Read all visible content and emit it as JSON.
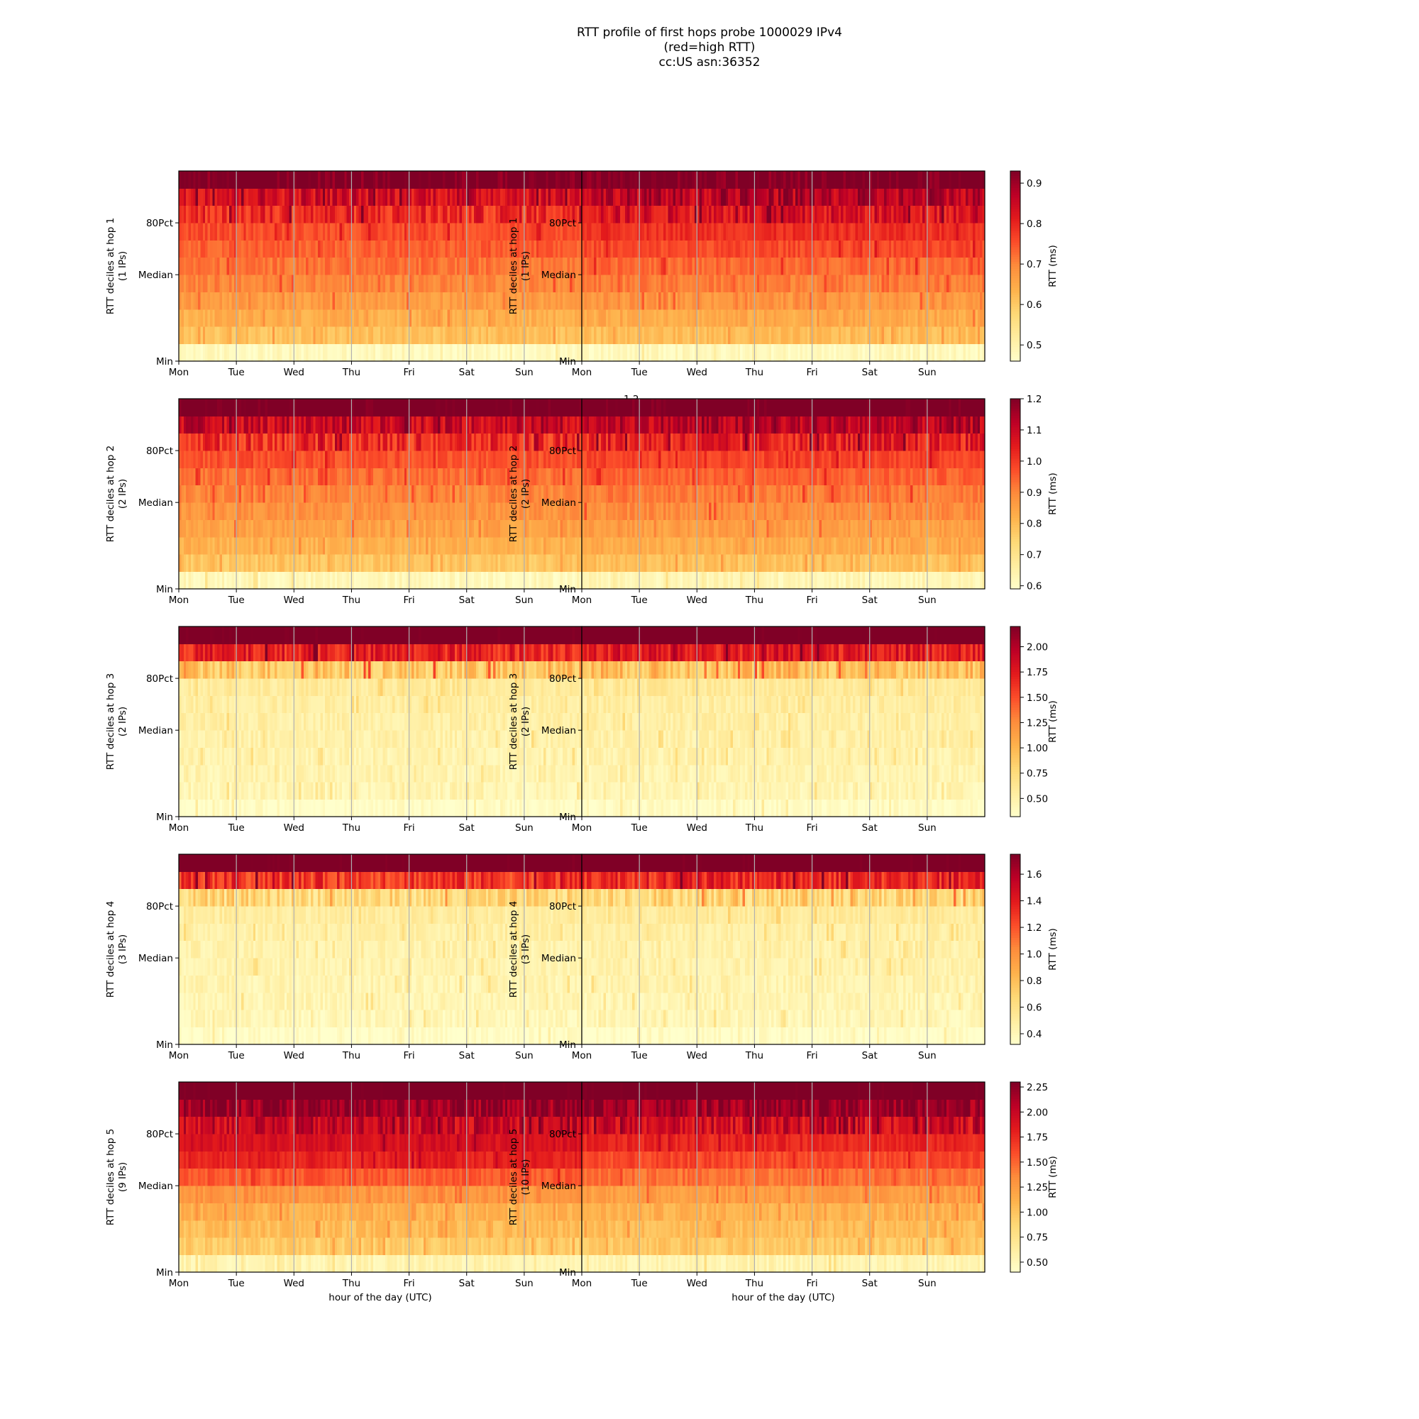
{
  "title": {
    "line1": "RTT profile of first hops probe 1000029 IPv4",
    "line2": "(red=high RTT)",
    "line3": "cc:US asn:36352"
  },
  "chart_data": {
    "type": "heatmap",
    "colormap": "YlOrRd",
    "x_ticks": [
      "Mon",
      "Tue",
      "Wed",
      "Thu",
      "Fri",
      "Sat",
      "Sun"
    ],
    "y_ticks": [
      "Min",
      "Median",
      "80Pct"
    ],
    "xlabel": "hour of the day (UTC)",
    "colorbar_label": "RTT (ms)",
    "rows_per_panel": 11,
    "columns_per_panel": 168,
    "grid": "vertical lines at day boundaries",
    "panels": [
      {
        "hop": 1,
        "column": "left",
        "ylabel": "RTT deciles at hop 1",
        "ips": "(1 IPs)",
        "cb_ticks": [
          "0.5",
          "0.6",
          "0.7",
          "0.8",
          "0.9"
        ],
        "cb_values": [
          0.5,
          0.6,
          0.7,
          0.8,
          0.9
        ],
        "cb_range": [
          0.44,
          0.93
        ],
        "decile_means": [
          0.46,
          0.6,
          0.63,
          0.66,
          0.69,
          0.71,
          0.73,
          0.75,
          0.79,
          0.84,
          0.95
        ]
      },
      {
        "hop": 1,
        "column": "right",
        "ylabel": "RTT deciles at hop 1",
        "ips": "(1 IPs)",
        "cb_ticks": [
          "0.5",
          "0.6",
          "0.7",
          "0.8",
          "0.9"
        ],
        "cb_values": [
          0.5,
          0.6,
          0.7,
          0.8,
          0.9
        ],
        "cb_range": [
          0.46,
          0.93
        ],
        "decile_means": [
          0.48,
          0.62,
          0.65,
          0.68,
          0.71,
          0.73,
          0.76,
          0.79,
          0.83,
          0.87,
          0.95
        ]
      },
      {
        "hop": 2,
        "column": "left",
        "ylabel": "RTT deciles at hop 2",
        "ips": "(2 IPs)",
        "cb_ticks": [
          "0.6",
          "0.7",
          "0.8",
          "0.9",
          "1.0",
          "1.1",
          "1.2"
        ],
        "cb_values": [
          0.6,
          0.7,
          0.8,
          0.9,
          1.0,
          1.1,
          1.2
        ],
        "cb_range": [
          0.59,
          1.2
        ],
        "decile_means": [
          0.62,
          0.78,
          0.82,
          0.85,
          0.88,
          0.9,
          0.93,
          0.97,
          1.02,
          1.1,
          1.25
        ]
      },
      {
        "hop": 2,
        "column": "right",
        "ylabel": "RTT deciles at hop 2",
        "ips": "(2 IPs)",
        "cb_ticks": [
          "0.6",
          "0.7",
          "0.8",
          "0.9",
          "1.0",
          "1.1",
          "1.2"
        ],
        "cb_values": [
          0.6,
          0.7,
          0.8,
          0.9,
          1.0,
          1.1,
          1.2
        ],
        "cb_range": [
          0.59,
          1.2
        ],
        "decile_means": [
          0.63,
          0.79,
          0.83,
          0.86,
          0.89,
          0.92,
          0.95,
          0.99,
          1.04,
          1.12,
          1.25
        ]
      },
      {
        "hop": 3,
        "column": "left",
        "ylabel": "RTT deciles at hop 3",
        "ips": "(2 IPs)",
        "cb_ticks": [
          "0.50",
          "0.75",
          "1.00",
          "1.25",
          "1.50",
          "1.75",
          "2.00"
        ],
        "cb_values": [
          0.5,
          0.75,
          1.0,
          1.25,
          1.5,
          1.75,
          2.0
        ],
        "cb_range": [
          0.32,
          2.2
        ],
        "decile_means": [
          0.35,
          0.45,
          0.47,
          0.48,
          0.5,
          0.52,
          0.54,
          0.58,
          0.9,
          1.7,
          2.4
        ]
      },
      {
        "hop": 3,
        "column": "right",
        "ylabel": "RTT deciles at hop 3",
        "ips": "(2 IPs)",
        "cb_ticks": [
          "0.50",
          "0.75",
          "1.00",
          "1.25",
          "1.50",
          "1.75",
          "2.00"
        ],
        "cb_values": [
          0.5,
          0.75,
          1.0,
          1.25,
          1.5,
          1.75,
          2.0
        ],
        "cb_range": [
          0.32,
          2.2
        ],
        "decile_means": [
          0.36,
          0.45,
          0.47,
          0.49,
          0.51,
          0.53,
          0.55,
          0.6,
          0.95,
          1.75,
          2.4
        ]
      },
      {
        "hop": 4,
        "column": "left",
        "ylabel": "RTT deciles at hop 4",
        "ips": "(3 IPs)",
        "cb_ticks": [
          "0.4",
          "0.6",
          "0.8",
          "1.0",
          "1.2",
          "1.4",
          "1.6"
        ],
        "cb_values": [
          0.4,
          0.6,
          0.8,
          1.0,
          1.2,
          1.4,
          1.6
        ],
        "cb_range": [
          0.32,
          1.75
        ],
        "decile_means": [
          0.34,
          0.4,
          0.42,
          0.43,
          0.44,
          0.45,
          0.47,
          0.5,
          0.65,
          1.3,
          1.9
        ]
      },
      {
        "hop": 4,
        "column": "right",
        "ylabel": "RTT deciles at hop 4",
        "ips": "(3 IPs)",
        "cb_ticks": [
          "0.4",
          "0.6",
          "0.8",
          "1.0",
          "1.2",
          "1.4",
          "1.6"
        ],
        "cb_values": [
          0.4,
          0.6,
          0.8,
          1.0,
          1.2,
          1.4,
          1.6
        ],
        "cb_range": [
          0.32,
          1.75
        ],
        "decile_means": [
          0.34,
          0.41,
          0.42,
          0.44,
          0.45,
          0.46,
          0.48,
          0.52,
          0.68,
          1.35,
          1.9
        ]
      },
      {
        "hop": 5,
        "column": "left",
        "ylabel": "RTT deciles at hop 5",
        "ips": "(9 IPs)",
        "cb_ticks": [
          "0.50",
          "0.75",
          "1.00",
          "1.25",
          "1.50",
          "1.75",
          "2.00",
          "2.25"
        ],
        "cb_values": [
          0.5,
          0.75,
          1.0,
          1.25,
          1.5,
          1.75,
          2.0,
          2.25
        ],
        "cb_range": [
          0.4,
          2.3
        ],
        "decile_means": [
          0.55,
          0.95,
          1.05,
          1.12,
          1.3,
          1.55,
          1.8,
          1.9,
          2.0,
          2.2,
          2.5
        ]
      },
      {
        "hop": 5,
        "column": "right",
        "ylabel": "RTT deciles at hop 5",
        "ips": "(10 IPs)",
        "cb_ticks": [
          "0.50",
          "0.75",
          "1.00",
          "1.25",
          "1.50",
          "1.75",
          "2.00",
          "2.25"
        ],
        "cb_values": [
          0.5,
          0.75,
          1.0,
          1.25,
          1.5,
          1.75,
          2.0,
          2.25
        ],
        "cb_range": [
          0.4,
          2.3
        ],
        "decile_means": [
          0.55,
          0.98,
          1.05,
          1.12,
          1.25,
          1.45,
          1.62,
          1.78,
          1.95,
          2.2,
          2.5
        ]
      }
    ]
  }
}
